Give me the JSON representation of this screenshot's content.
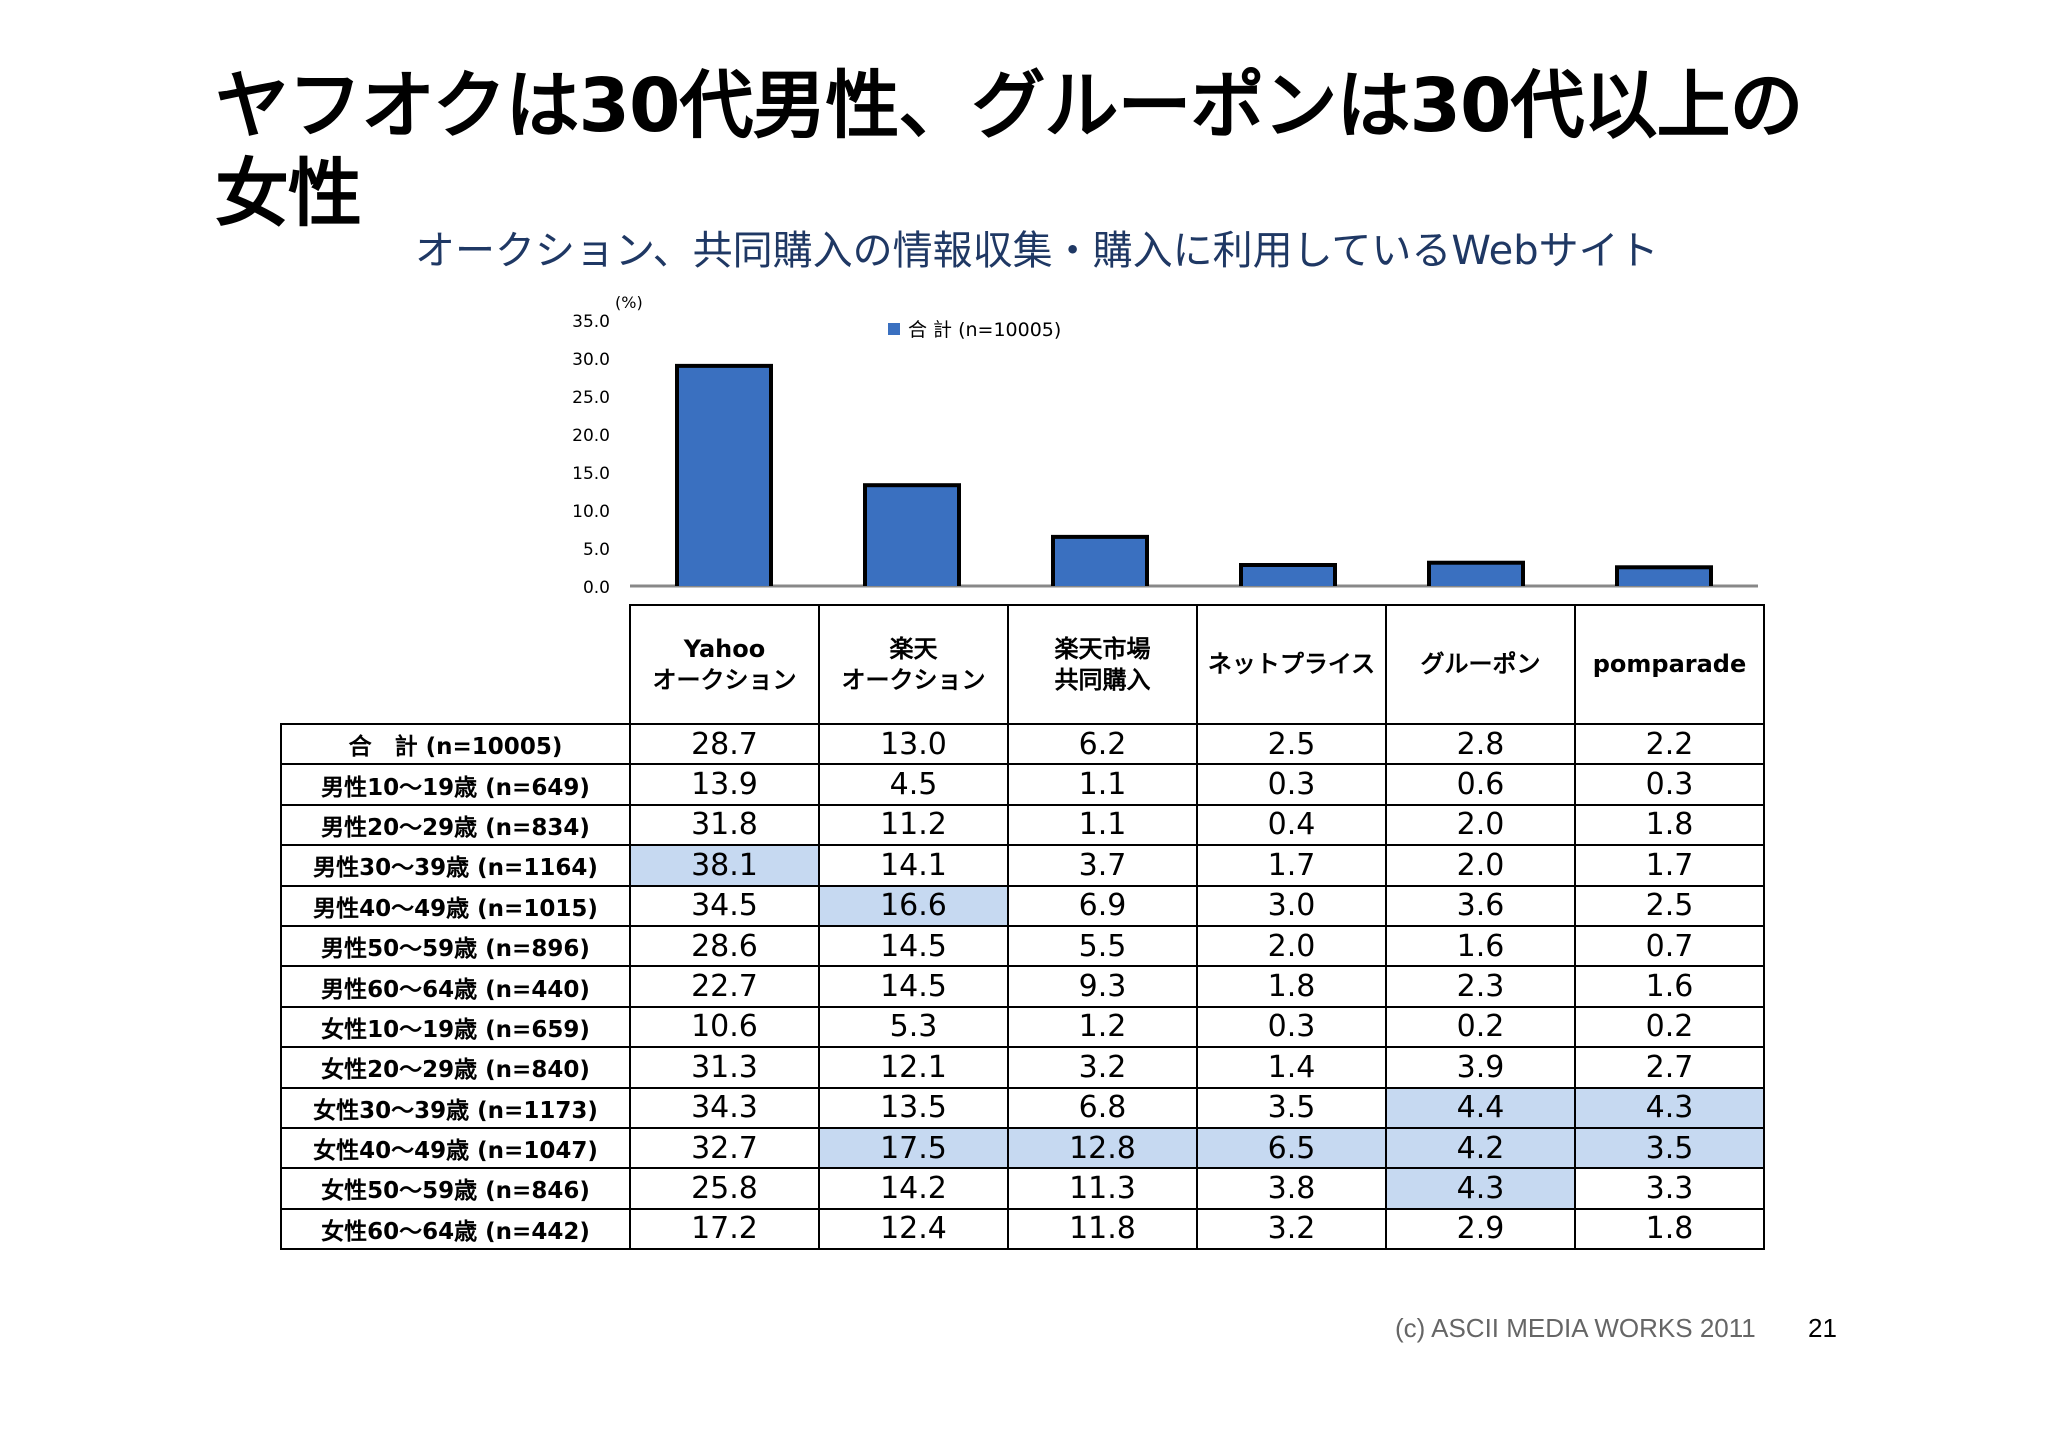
{
  "page": {
    "title": "ヤフオクは30代男性、グルーポンは30代以上の女性",
    "subtitle": "オークション、共同購入の情報収集・購入に利用しているWebサイト",
    "footer": "(c) ASCII MEDIA WORKS 2011",
    "page_number": "21"
  },
  "chart_data": {
    "type": "bar",
    "ylabel": "(%)",
    "ylim": [
      0,
      35
    ],
    "yticks": [
      "0.0",
      "5.0",
      "10.0",
      "15.0",
      "20.0",
      "25.0",
      "30.0",
      "35.0"
    ],
    "legend": "top-center",
    "grid": false,
    "categories": [
      "Yahoo オークション",
      "楽天 オークション",
      "楽天市場 共同購入",
      "ネットプライス",
      "グルーポン",
      "pomparade"
    ],
    "series": [
      {
        "name": "合 計 (n=10005)",
        "values": [
          28.7,
          13.0,
          6.2,
          2.5,
          2.8,
          2.2
        ],
        "color": "#3a70c0"
      }
    ]
  },
  "table": {
    "columns": [
      "Yahoo\nオークション",
      "楽天\nオークション",
      "楽天市場\n共同購入",
      "ネットプライス",
      "グルーポン",
      "pomparade"
    ],
    "rows": [
      {
        "label": "合　計 (n=10005)",
        "values": [
          "28.7",
          "13.0",
          "6.2",
          "2.5",
          "2.8",
          "2.2"
        ],
        "highlight": []
      },
      {
        "label": "男性10～19歳 (n=649)",
        "values": [
          "13.9",
          "4.5",
          "1.1",
          "0.3",
          "0.6",
          "0.3"
        ],
        "highlight": []
      },
      {
        "label": "男性20～29歳 (n=834)",
        "values": [
          "31.8",
          "11.2",
          "1.1",
          "0.4",
          "2.0",
          "1.8"
        ],
        "highlight": []
      },
      {
        "label": "男性30～39歳 (n=1164)",
        "values": [
          "38.1",
          "14.1",
          "3.7",
          "1.7",
          "2.0",
          "1.7"
        ],
        "highlight": [
          0
        ]
      },
      {
        "label": "男性40～49歳 (n=1015)",
        "values": [
          "34.5",
          "16.6",
          "6.9",
          "3.0",
          "3.6",
          "2.5"
        ],
        "highlight": [
          1
        ]
      },
      {
        "label": "男性50～59歳 (n=896)",
        "values": [
          "28.6",
          "14.5",
          "5.5",
          "2.0",
          "1.6",
          "0.7"
        ],
        "highlight": []
      },
      {
        "label": "男性60～64歳 (n=440)",
        "values": [
          "22.7",
          "14.5",
          "9.3",
          "1.8",
          "2.3",
          "1.6"
        ],
        "highlight": []
      },
      {
        "label": "女性10～19歳 (n=659)",
        "values": [
          "10.6",
          "5.3",
          "1.2",
          "0.3",
          "0.2",
          "0.2"
        ],
        "highlight": []
      },
      {
        "label": "女性20～29歳 (n=840)",
        "values": [
          "31.3",
          "12.1",
          "3.2",
          "1.4",
          "3.9",
          "2.7"
        ],
        "highlight": []
      },
      {
        "label": "女性30～39歳 (n=1173)",
        "values": [
          "34.3",
          "13.5",
          "6.8",
          "3.5",
          "4.4",
          "4.3"
        ],
        "highlight": [
          4,
          5
        ]
      },
      {
        "label": "女性40～49歳 (n=1047)",
        "values": [
          "32.7",
          "17.5",
          "12.8",
          "6.5",
          "4.2",
          "3.5"
        ],
        "highlight": [
          1,
          2,
          3,
          4,
          5
        ]
      },
      {
        "label": "女性50～59歳 (n=846)",
        "values": [
          "25.8",
          "14.2",
          "11.3",
          "3.8",
          "4.3",
          "3.3"
        ],
        "highlight": [
          4
        ]
      },
      {
        "label": "女性60～64歳 (n=442)",
        "values": [
          "17.2",
          "12.4",
          "11.8",
          "3.2",
          "2.9",
          "1.8"
        ],
        "highlight": []
      }
    ]
  }
}
